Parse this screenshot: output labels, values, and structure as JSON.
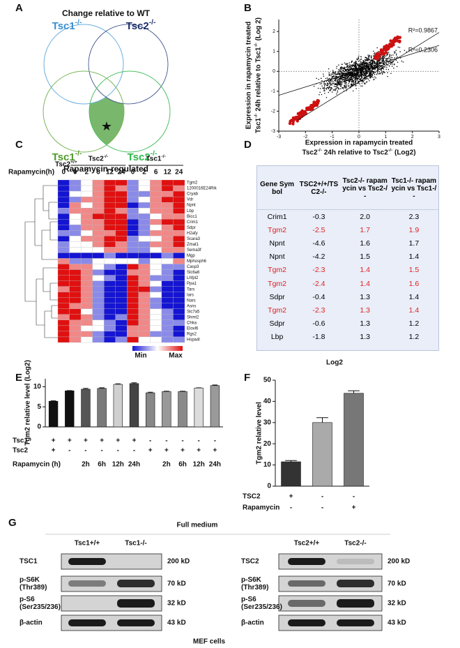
{
  "panel_labels": [
    "A",
    "B",
    "C",
    "D",
    "E",
    "F",
    "G"
  ],
  "venn": {
    "title": "Change relative to WT",
    "sets": [
      "Tsc1-/-",
      "Tsc2-/-",
      "Tsc1-/-",
      "Tsc2-/-"
    ],
    "subtitle": "Rapamycin-regulated",
    "marker": "★"
  },
  "chart_data": [
    {
      "type": "scatter",
      "ylabel": [
        "Expression in rapamycin treated",
        "Tsc1-/- 24h relative to Tsc1-/- (Log 2)"
      ],
      "xlabel": [
        "Expression in rapamycin treated",
        "Tsc2-/- 24h relative to Tsc2-/- (Log2)"
      ],
      "xlim": [
        -3,
        3
      ],
      "ylim": [
        -3,
        2.6
      ],
      "xticks": [
        -3,
        -2,
        -1,
        0,
        1,
        2,
        3
      ],
      "yticks": [
        -3,
        -2,
        -1,
        0,
        1,
        2
      ],
      "annotations": [
        "R²=0.9867",
        "R²=0.2306"
      ],
      "point_color": "#000000",
      "highlight_color": "#cc1111",
      "zero_lines": true
    },
    {
      "type": "heatmap",
      "column_title": "Rapamycin(h)",
      "column_groups": [
        "Tsc2+/+",
        "Tsc2-/-",
        "Tsc2-/-",
        "Tsc2-/-",
        "Tsc2-/-",
        "Tsc2-/-",
        "Tsc1-/-",
        "Tsc1-/-",
        "Tsc1-/-",
        "Tsc1-/-",
        "Tsc1-/-"
      ],
      "columns": [
        "0",
        "0",
        "2",
        "6",
        "12",
        "24",
        "0",
        "2",
        "6",
        "12",
        "24"
      ],
      "rows": [
        "Tgm2",
        "1200016E24Rik",
        "Cryab",
        "Vdr",
        "Npnt",
        "Lbp",
        "Bicc1",
        "Crim1",
        "Sdpr",
        "H2afy",
        "Scara3",
        "Zmat1",
        "Sema3f",
        "Mgp",
        "Mphosph6",
        "Casp3",
        "Slc6a6",
        "Lhfpl2",
        "Ppa1",
        "Tars",
        "Iars",
        "Nars",
        "Asns",
        "Slc7a5",
        "Shmt2",
        "Chka",
        "Elovl6",
        "Rgs2",
        "Hspa4l"
      ],
      "values": [
        [
          -2,
          -1,
          0,
          1,
          2,
          2,
          -1,
          0,
          1,
          2,
          2
        ],
        [
          -2,
          -1,
          0,
          1,
          2,
          1,
          -1,
          0,
          1,
          2,
          1
        ],
        [
          -2,
          0,
          0,
          1,
          2,
          2,
          -1,
          -1,
          1,
          1,
          2
        ],
        [
          -2,
          -1,
          1,
          1,
          2,
          2,
          -1,
          0,
          1,
          2,
          2
        ],
        [
          -2,
          1,
          0,
          1,
          2,
          2,
          -2,
          -1,
          1,
          1,
          2
        ],
        [
          -1,
          1,
          1,
          1,
          2,
          1,
          -1,
          0,
          1,
          1,
          2
        ],
        [
          -2,
          0,
          1,
          2,
          2,
          2,
          -1,
          -1,
          0,
          1,
          1
        ],
        [
          -2,
          0,
          1,
          1,
          2,
          2,
          -2,
          -1,
          1,
          2,
          2
        ],
        [
          -2,
          -1,
          1,
          1,
          2,
          2,
          -2,
          -1,
          0,
          1,
          2
        ],
        [
          -1,
          -1,
          0,
          1,
          1,
          2,
          -2,
          -1,
          1,
          1,
          1
        ],
        [
          -2,
          0,
          1,
          1,
          2,
          2,
          -1,
          0,
          0,
          1,
          2
        ],
        [
          -1,
          0,
          0,
          1,
          2,
          1,
          -1,
          -1,
          1,
          1,
          2
        ],
        [
          -1,
          0,
          0,
          0,
          1,
          1,
          -1,
          -1,
          0,
          1,
          1
        ],
        [
          -2,
          -2,
          -2,
          -2,
          -1,
          -2,
          -2,
          -2,
          -2,
          -1,
          -2
        ],
        [
          1,
          -1,
          -1,
          0,
          0,
          0,
          0,
          -1,
          0,
          0,
          1
        ],
        [
          2,
          1,
          1,
          0,
          -1,
          -2,
          2,
          1,
          0,
          -1,
          -1
        ],
        [
          2,
          2,
          1,
          -1,
          -2,
          -2,
          1,
          1,
          0,
          -1,
          -2
        ],
        [
          2,
          2,
          1,
          0,
          -1,
          -2,
          2,
          1,
          -1,
          -1,
          -2
        ],
        [
          2,
          2,
          1,
          -1,
          -2,
          -2,
          2,
          1,
          0,
          -2,
          -2
        ],
        [
          1,
          2,
          1,
          -1,
          -2,
          -2,
          2,
          2,
          -1,
          -2,
          -2
        ],
        [
          2,
          2,
          1,
          -1,
          -2,
          -2,
          2,
          1,
          0,
          -2,
          -2
        ],
        [
          2,
          2,
          1,
          -1,
          -2,
          -2,
          2,
          1,
          -1,
          -2,
          -2
        ],
        [
          2,
          1,
          1,
          -1,
          -2,
          -2,
          2,
          1,
          -1,
          -2,
          -2
        ],
        [
          2,
          2,
          0,
          -1,
          -2,
          -2,
          2,
          1,
          0,
          -1,
          -2
        ],
        [
          1,
          2,
          1,
          -1,
          -2,
          -1,
          2,
          1,
          0,
          -1,
          -2
        ],
        [
          2,
          1,
          1,
          0,
          -1,
          -2,
          2,
          1,
          0,
          -1,
          -1
        ],
        [
          2,
          1,
          0,
          0,
          -1,
          -2,
          1,
          1,
          0,
          -1,
          -2
        ],
        [
          2,
          1,
          1,
          -1,
          -2,
          -2,
          1,
          1,
          -1,
          -1,
          -2
        ],
        [
          2,
          1,
          0,
          -1,
          -2,
          -1,
          2,
          0,
          0,
          -1,
          -1
        ]
      ],
      "vmin": -2,
      "vmax": 2,
      "colors": [
        "#1414d2",
        "#ffffff",
        "#e01010"
      ],
      "colorbar_labels": [
        "Min",
        "Max"
      ]
    },
    {
      "type": "bar",
      "ylabel": "Tgm2 relative level (Log2)",
      "values": [
        6.4,
        9.0,
        9.4,
        9.6,
        10.6,
        10.8,
        8.5,
        8.8,
        8.8,
        9.7,
        10.3
      ],
      "errors": [
        0.1,
        0.05,
        0.2,
        0.15,
        0.15,
        0.2,
        0.15,
        0.1,
        0.1,
        0.05,
        0.15
      ],
      "colors": [
        "#111111",
        "#111111",
        "#555555",
        "#7a7a7a",
        "#d0d0d0",
        "#444444",
        "#888888",
        "#999999",
        "#8a8a8a",
        "#dcdcdc",
        "#9a9a9a"
      ],
      "ylim": [
        0,
        12
      ],
      "yticks": [
        0,
        5,
        10
      ],
      "conditions": [
        {
          "name": "Tsc1",
          "values": [
            "+",
            "+",
            "+",
            "+",
            "+",
            "+",
            "-",
            "-",
            "-",
            "-",
            "-"
          ]
        },
        {
          "name": "Tsc2",
          "values": [
            "+",
            "-",
            "-",
            "-",
            "-",
            "-",
            "+",
            "+",
            "+",
            "+",
            "+"
          ]
        },
        {
          "name": "Rapamycin (h)",
          "values": [
            null,
            null,
            "2h",
            "6h",
            "12h",
            "24h",
            null,
            "2h",
            "6h",
            "12h",
            "24h"
          ]
        }
      ]
    },
    {
      "type": "bar",
      "ylabel": "Tgm2 relative level",
      "values": [
        11.5,
        30,
        43.8
      ],
      "errors": [
        0.6,
        2.3,
        1.2
      ],
      "colors": [
        "#333333",
        "#aaaaaa",
        "#777777"
      ],
      "ylim": [
        0,
        50
      ],
      "yticks": [
        0,
        10,
        20,
        30,
        40,
        50
      ],
      "conditions": [
        {
          "name": "TSC2",
          "values": [
            "+",
            "-",
            "-"
          ]
        },
        {
          "name": "Rapamycin",
          "values": [
            "-",
            "-",
            "+"
          ]
        }
      ]
    }
  ],
  "table": {
    "header": [
      "Gene Symbol",
      "TSC2+/+/TSC2-/-",
      "Tsc2-/- rapamycin vs Tsc2-/-",
      "Tsc1-/- rapamycin vs Tsc1-/-"
    ],
    "rows": [
      [
        "Crim1",
        "-0.3",
        "2.0",
        "2.3"
      ],
      [
        "Tgm2",
        "-2.5",
        "1.7",
        "1.9"
      ],
      [
        "Npnt",
        "-4.6",
        "1.6",
        "1.7"
      ],
      [
        "Npnt",
        "-4.2",
        "1.5",
        "1.4"
      ],
      [
        "Tgm2",
        "-2.3",
        "1.4",
        "1.5"
      ],
      [
        "Tgm2",
        "-2.4",
        "1.4",
        "1.6"
      ],
      [
        "Sdpr",
        "-0.4",
        "1.3",
        "1.4"
      ],
      [
        "Tgm2",
        "-2.3",
        "1.3",
        "1.4"
      ],
      [
        "Sdpr",
        "-0.6",
        "1.3",
        "1.2"
      ],
      [
        "Lbp",
        "-1.8",
        "1.3",
        "1.2"
      ]
    ],
    "highlight": [
      false,
      true,
      false,
      false,
      true,
      true,
      false,
      true,
      false,
      false
    ],
    "highlight_color": "#e02020",
    "caption": "Log2"
  },
  "western_blot": {
    "title": "Full medium",
    "footer": "MEF cells",
    "blots": [
      {
        "lanes": [
          "Tsc1+/+",
          "Tsc1-/-"
        ],
        "rows": [
          {
            "label": [
              "TSC1"
            ],
            "size": "200 kD"
          },
          {
            "label": [
              "p-S6K",
              "(Thr389)"
            ],
            "size": "70 kD"
          },
          {
            "label": [
              "p-S6",
              "(Ser235/236)"
            ],
            "size": "32 kD"
          },
          {
            "label": [
              "β-actin"
            ],
            "size": "43 kD"
          }
        ]
      },
      {
        "lanes": [
          "Tsc2+/+",
          "Tsc2-/-"
        ],
        "rows": [
          {
            "label": [
              "TSC2"
            ],
            "size": "200 kD"
          },
          {
            "label": [
              "p-S6K",
              "(Thr389)"
            ],
            "size": "70 kD"
          },
          {
            "label": [
              "p-S6",
              "(Ser235/236)"
            ],
            "size": "32 kD"
          },
          {
            "label": [
              "β-actin"
            ],
            "size": "43 kD"
          }
        ]
      }
    ]
  }
}
